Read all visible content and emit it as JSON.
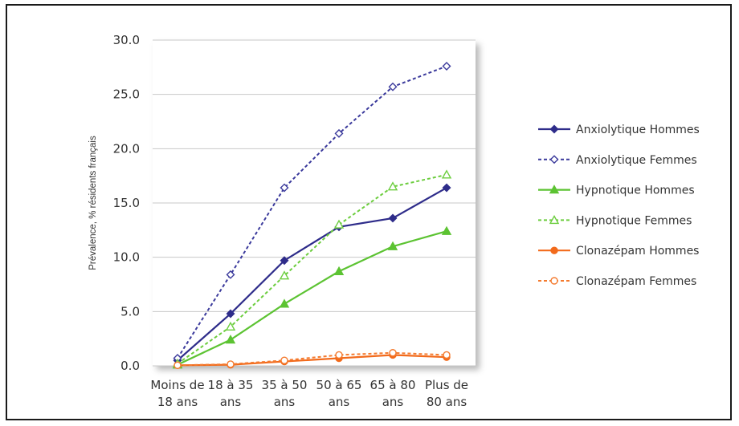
{
  "chart_data": {
    "type": "line",
    "title": "",
    "xlabel": "",
    "ylabel": "Prévalence, % résidents français",
    "ylim": [
      0,
      30
    ],
    "yticks": [
      "0.0",
      "5.0",
      "10.0",
      "15.0",
      "20.0",
      "25.0",
      "30.0"
    ],
    "grid": true,
    "legend_position": "right",
    "categories": [
      [
        "Moins de",
        "18 ans"
      ],
      [
        "18 à 35",
        "ans"
      ],
      [
        "35 à 50",
        "ans"
      ],
      [
        "50 à 65",
        "ans"
      ],
      [
        "65 à 80",
        "ans"
      ],
      [
        "Plus de",
        "80 ans"
      ]
    ],
    "series": [
      {
        "name": "Anxiolytique Hommes",
        "values": [
          0.5,
          4.8,
          9.7,
          12.8,
          13.6,
          16.4
        ],
        "color": "#2e2c8a",
        "dash": false,
        "marker": "diamond",
        "filled": true
      },
      {
        "name": "Anxiolytique Femmes",
        "values": [
          0.7,
          8.4,
          16.4,
          21.4,
          25.7,
          27.6
        ],
        "color": "#3b3a9c",
        "dash": true,
        "marker": "diamond",
        "filled": false
      },
      {
        "name": "Hypnotique Hommes",
        "values": [
          0.1,
          2.4,
          5.7,
          8.7,
          11.0,
          12.4
        ],
        "color": "#5cc332",
        "dash": false,
        "marker": "triangle",
        "filled": true
      },
      {
        "name": "Hypnotique Femmes",
        "values": [
          0.2,
          3.6,
          8.3,
          13.0,
          16.5,
          17.6
        ],
        "color": "#6ccd3e",
        "dash": true,
        "marker": "triangle",
        "filled": false
      },
      {
        "name": "Clonazépam Hommes",
        "values": [
          0.05,
          0.1,
          0.4,
          0.7,
          1.0,
          0.8
        ],
        "color": "#f26a1b",
        "dash": false,
        "marker": "circle",
        "filled": true
      },
      {
        "name": "Clonazépam Femmes",
        "values": [
          0.05,
          0.15,
          0.5,
          1.0,
          1.2,
          1.0
        ],
        "color": "#f47a2e",
        "dash": true,
        "marker": "circle",
        "filled": false
      }
    ]
  }
}
